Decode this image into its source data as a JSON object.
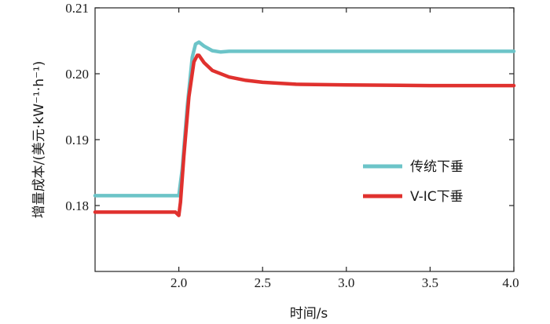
{
  "chart_data": {
    "type": "line",
    "xlabel": "时间/s",
    "ylabel": "增量成本/(美元·kW⁻¹·h⁻¹)",
    "xlim": [
      1.5,
      4.0
    ],
    "ylim": [
      0.17,
      0.21
    ],
    "xticks": [
      2.0,
      2.5,
      3.0,
      3.5,
      4.0
    ],
    "xtick_labels": [
      "2.0",
      "2.5",
      "3.0",
      "3.5",
      "4.0"
    ],
    "yticks": [
      0.18,
      0.19,
      0.2,
      0.21
    ],
    "ytick_labels": [
      "0.18",
      "0.19",
      "0.20",
      "0.21"
    ],
    "grid": false,
    "legend_position": "right",
    "series": [
      {
        "name": "传统下垂",
        "color": "#6cc4c8",
        "x": [
          1.5,
          2.0,
          2.02,
          2.05,
          2.08,
          2.1,
          2.12,
          2.15,
          2.2,
          2.25,
          2.3,
          2.4,
          2.6,
          3.0,
          3.5,
          4.0
        ],
        "y": [
          0.1815,
          0.1815,
          0.1855,
          0.195,
          0.2025,
          0.2045,
          0.2048,
          0.2042,
          0.2035,
          0.2033,
          0.2034,
          0.2034,
          0.2034,
          0.2034,
          0.2034,
          0.2034
        ]
      },
      {
        "name": "V-IC下垂",
        "color": "#e0312e",
        "x": [
          1.5,
          1.98,
          2.0,
          2.01,
          2.03,
          2.06,
          2.09,
          2.11,
          2.12,
          2.15,
          2.2,
          2.3,
          2.4,
          2.5,
          2.7,
          3.0,
          3.5,
          4.0
        ],
        "y": [
          0.179,
          0.179,
          0.1785,
          0.1805,
          0.1875,
          0.1965,
          0.2018,
          0.2028,
          0.2028,
          0.2017,
          0.2005,
          0.1995,
          0.199,
          0.1987,
          0.1984,
          0.1983,
          0.1982,
          0.1982
        ]
      }
    ]
  }
}
